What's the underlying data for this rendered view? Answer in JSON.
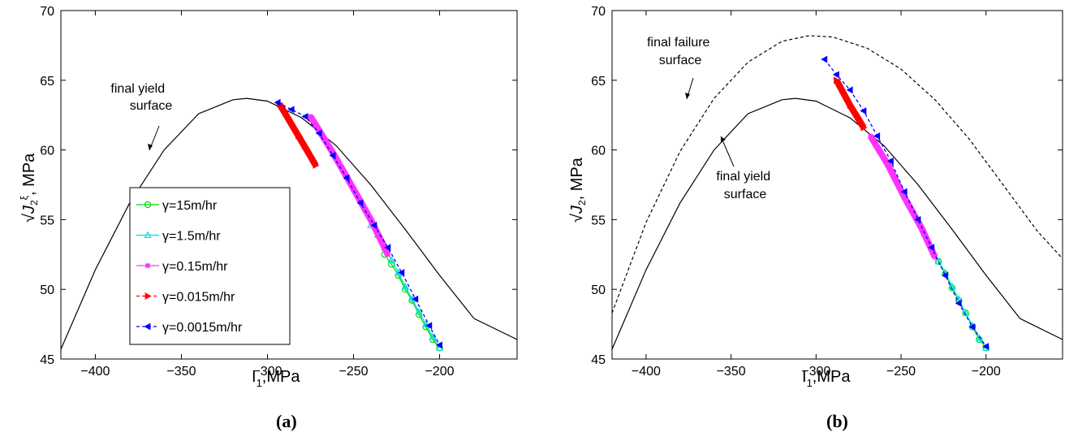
{
  "chart_data": [
    {
      "type": "line",
      "panel_label": "(a)",
      "xlabel_main": "I",
      "xlabel_sub": "1",
      "xlabel_rest": ",MPa",
      "ylabel": "√J₂^ξ , MPa",
      "ylabel_radical": "√",
      "ylabel_var": "J",
      "ylabel_sub": "2",
      "ylabel_sup": "ξ",
      "ylabel_unit": ", MPa",
      "xlim": [
        -420,
        -155
      ],
      "ylim": [
        45,
        70
      ],
      "xticks": [
        -400,
        -350,
        -300,
        -250,
        -200
      ],
      "yticks": [
        45,
        50,
        55,
        60,
        65,
        70
      ],
      "grid": false,
      "legend_position": "lower-left",
      "annotations": [
        {
          "lines": [
            "final yield",
            "surface"
          ]
        }
      ],
      "curves": [
        {
          "role": "final yield surface",
          "style": "solid",
          "color": "#000000",
          "x": [
            -420,
            -400,
            -380,
            -360,
            -340,
            -320,
            -312,
            -300,
            -280,
            -260,
            -240,
            -220,
            -200,
            -180,
            -155
          ],
          "y": [
            45.7,
            51.4,
            56.2,
            60.0,
            62.6,
            63.6,
            63.7,
            63.5,
            62.3,
            60.3,
            57.5,
            54.3,
            51.0,
            47.9,
            46.4
          ]
        }
      ],
      "series": [
        {
          "name": "γ=15m/hr",
          "color": "#00dd00",
          "marker": "circle",
          "style": "solid",
          "x": [
            -232,
            -228,
            -224,
            -220,
            -216,
            -212,
            -208,
            -204,
            -200
          ],
          "y": [
            52.5,
            51.8,
            51.0,
            50.0,
            49.2,
            48.2,
            47.3,
            46.4,
            45.8
          ]
        },
        {
          "name": "γ=1.5m/hr",
          "color": "#00e0e0",
          "marker": "triangle-up",
          "style": "solid",
          "x": [
            -240,
            -236,
            -232,
            -228,
            -224,
            -220,
            -216,
            -212,
            -208,
            -204,
            -200
          ],
          "y": [
            54.6,
            53.9,
            53.0,
            52.1,
            51.2,
            50.2,
            49.3,
            48.4,
            47.5,
            46.6,
            45.8
          ]
        },
        {
          "name": "γ=0.15m/hr",
          "color": "#ff33ff",
          "marker": "square",
          "style": "solid",
          "x": [
            -275,
            -262,
            -250,
            -240,
            -230
          ],
          "y": [
            62.4,
            59.8,
            57.2,
            55.0,
            52.5
          ]
        },
        {
          "name": "γ=0.015m/hr",
          "color": "#ff0000",
          "marker": "triangle-right",
          "style": "dashed",
          "x": [
            -293,
            -282,
            -272
          ],
          "y": [
            63.3,
            61.0,
            58.9
          ]
        },
        {
          "name": "γ=0.0015m/hr",
          "color": "#0000ff",
          "marker": "triangle-left",
          "style": "dashed",
          "x": [
            -294,
            -286,
            -278,
            -270,
            -262,
            -254,
            -246,
            -238,
            -230,
            -222,
            -214,
            -206,
            -200
          ],
          "y": [
            63.4,
            62.9,
            62.4,
            61.2,
            59.6,
            58.0,
            56.2,
            54.6,
            53.0,
            51.2,
            49.3,
            47.4,
            46.0
          ]
        }
      ]
    },
    {
      "type": "line",
      "panel_label": "(b)",
      "xlabel_main": "I",
      "xlabel_sub": "1",
      "xlabel_rest": ",MPa",
      "ylabel": "√J₂ , MPa",
      "ylabel_radical": "√",
      "ylabel_var": "J",
      "ylabel_sub": "2",
      "ylabel_unit": ", MPa",
      "xlim": [
        -420,
        -155
      ],
      "ylim": [
        45,
        70
      ],
      "xticks": [
        -400,
        -350,
        -300,
        -250,
        -200
      ],
      "yticks": [
        45,
        50,
        55,
        60,
        65,
        70
      ],
      "grid": false,
      "annotations": [
        {
          "lines": [
            "final failure",
            "surface"
          ]
        },
        {
          "lines": [
            "final yield",
            "surface"
          ]
        }
      ],
      "curves": [
        {
          "role": "final yield surface",
          "style": "solid",
          "color": "#000000",
          "x": [
            -420,
            -400,
            -380,
            -360,
            -340,
            -320,
            -312,
            -300,
            -280,
            -260,
            -240,
            -220,
            -200,
            -180,
            -155
          ],
          "y": [
            45.7,
            51.4,
            56.2,
            60.0,
            62.6,
            63.6,
            63.7,
            63.5,
            62.3,
            60.3,
            57.5,
            54.3,
            51.0,
            47.9,
            46.4
          ]
        },
        {
          "role": "final failure surface",
          "style": "dashed",
          "color": "#000000",
          "x": [
            -420,
            -400,
            -380,
            -360,
            -340,
            -320,
            -304,
            -290,
            -270,
            -250,
            -230,
            -210,
            -190,
            -170,
            -155
          ],
          "y": [
            48.3,
            54.8,
            59.9,
            63.7,
            66.3,
            67.8,
            68.2,
            68.1,
            67.3,
            65.8,
            63.6,
            60.8,
            57.5,
            54.2,
            52.2
          ]
        }
      ],
      "series": [
        {
          "name": "γ=15m/hr",
          "color": "#00dd00",
          "marker": "circle",
          "style": "solid",
          "x": [
            -228,
            -224,
            -220,
            -216,
            -212,
            -208,
            -204,
            -200
          ],
          "y": [
            52.0,
            51.1,
            50.1,
            49.2,
            48.3,
            47.3,
            46.4,
            45.8
          ]
        },
        {
          "name": "γ=1.5m/hr",
          "color": "#00e0e0",
          "marker": "triangle-up",
          "style": "solid",
          "x": [
            -240,
            -236,
            -232,
            -228,
            -224,
            -220,
            -216,
            -212,
            -208,
            -204,
            -200
          ],
          "y": [
            55.0,
            54.0,
            53.0,
            52.0,
            51.2,
            50.2,
            49.3,
            48.3,
            47.4,
            46.5,
            45.8
          ]
        },
        {
          "name": "γ=0.15m/hr",
          "color": "#ff33ff",
          "marker": "square",
          "style": "solid",
          "x": [
            -268,
            -258,
            -248,
            -238,
            -230
          ],
          "y": [
            61.0,
            59.0,
            56.6,
            54.4,
            52.3
          ]
        },
        {
          "name": "γ=0.015m/hr",
          "color": "#ff0000",
          "marker": "triangle-right",
          "style": "dashed",
          "x": [
            -288,
            -280,
            -272
          ],
          "y": [
            65.0,
            63.2,
            61.6
          ]
        },
        {
          "name": "γ=0.0015m/hr",
          "color": "#0000ff",
          "marker": "triangle-left",
          "style": "dashed",
          "x": [
            -295,
            -288,
            -280,
            -272,
            -264,
            -256,
            -248,
            -240,
            -232,
            -224,
            -216,
            -208,
            -200
          ],
          "y": [
            66.5,
            65.4,
            64.3,
            62.8,
            61.0,
            59.2,
            57.0,
            55.0,
            53.0,
            51.0,
            49.0,
            47.3,
            45.9
          ]
        }
      ]
    }
  ]
}
